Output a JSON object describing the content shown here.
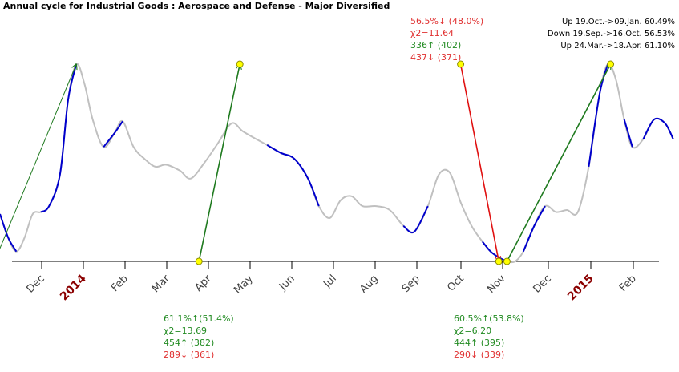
{
  "chart_data": {
    "type": "line",
    "title": "Annual cycle for Industrial Goods : Aerospace and Defense - Major Diversified",
    "x_labels": [
      {
        "label": "Dec",
        "year": false
      },
      {
        "label": "2014",
        "year": true
      },
      {
        "label": "Feb",
        "year": false
      },
      {
        "label": "Mar",
        "year": false
      },
      {
        "label": "Apr",
        "year": false
      },
      {
        "label": "May",
        "year": false
      },
      {
        "label": "Jun",
        "year": false
      },
      {
        "label": "Jul",
        "year": false
      },
      {
        "label": "Aug",
        "year": false
      },
      {
        "label": "Sep",
        "year": false
      },
      {
        "label": "Oct",
        "year": false
      },
      {
        "label": "Nov",
        "year": false
      },
      {
        "label": "Dec",
        "year": false
      },
      {
        "label": "2015",
        "year": true
      },
      {
        "label": "Feb",
        "year": false
      }
    ],
    "series_points": [
      [
        0.0,
        24
      ],
      [
        0.3,
        12
      ],
      [
        0.6,
        5
      ],
      [
        0.9,
        12
      ],
      [
        1.2,
        24
      ],
      [
        1.5,
        25
      ],
      [
        1.8,
        28
      ],
      [
        2.2,
        44
      ],
      [
        2.5,
        82
      ],
      [
        2.8,
        100
      ],
      [
        3.1,
        90
      ],
      [
        3.4,
        72
      ],
      [
        3.8,
        58
      ],
      [
        4.2,
        65
      ],
      [
        4.5,
        71
      ],
      [
        4.9,
        58
      ],
      [
        5.3,
        52
      ],
      [
        5.7,
        48
      ],
      [
        6.1,
        49
      ],
      [
        6.6,
        46
      ],
      [
        7.0,
        42
      ],
      [
        7.5,
        50
      ],
      [
        8.0,
        60
      ],
      [
        8.5,
        70
      ],
      [
        8.9,
        66
      ],
      [
        9.4,
        62
      ],
      [
        9.8,
        59
      ],
      [
        10.3,
        55
      ],
      [
        10.8,
        52
      ],
      [
        11.3,
        42
      ],
      [
        11.7,
        28
      ],
      [
        12.1,
        22
      ],
      [
        12.5,
        31
      ],
      [
        12.9,
        33
      ],
      [
        13.3,
        28
      ],
      [
        13.8,
        28
      ],
      [
        14.3,
        26
      ],
      [
        14.8,
        18
      ],
      [
        15.2,
        15
      ],
      [
        15.7,
        28
      ],
      [
        16.1,
        44
      ],
      [
        16.5,
        45
      ],
      [
        16.9,
        30
      ],
      [
        17.3,
        18
      ],
      [
        17.7,
        10
      ],
      [
        18.0,
        5
      ],
      [
        18.3,
        2
      ],
      [
        18.6,
        0
      ],
      [
        18.9,
        0
      ],
      [
        19.2,
        5
      ],
      [
        19.6,
        18
      ],
      [
        20.0,
        28
      ],
      [
        20.4,
        25
      ],
      [
        20.8,
        26
      ],
      [
        21.2,
        25
      ],
      [
        21.6,
        48
      ],
      [
        22.0,
        85
      ],
      [
        22.3,
        100
      ],
      [
        22.6,
        92
      ],
      [
        22.9,
        72
      ],
      [
        23.2,
        58
      ],
      [
        23.6,
        62
      ],
      [
        24.0,
        72
      ],
      [
        24.4,
        70
      ],
      [
        24.7,
        62
      ]
    ],
    "blue_segments": [
      [
        0.0,
        0.6
      ],
      [
        1.5,
        2.8
      ],
      [
        3.8,
        4.5
      ],
      [
        9.8,
        11.7
      ],
      [
        14.8,
        15.7
      ],
      [
        17.7,
        18.6
      ],
      [
        19.2,
        20.0
      ],
      [
        21.6,
        22.3
      ],
      [
        22.9,
        23.2
      ],
      [
        23.6,
        24.7
      ]
    ],
    "arrows": [
      {
        "direction": "up",
        "from": [
          -0.2,
          0
        ],
        "to": [
          2.8,
          100
        ],
        "weight": "thin"
      },
      {
        "direction": "up",
        "from": [
          7.3,
          0
        ],
        "to": [
          8.8,
          100
        ],
        "weight": "normal"
      },
      {
        "direction": "down",
        "from": [
          16.9,
          100
        ],
        "to": [
          18.3,
          0
        ],
        "weight": "normal"
      },
      {
        "direction": "up",
        "from": [
          18.6,
          0
        ],
        "to": [
          22.4,
          100
        ],
        "weight": "normal"
      }
    ],
    "y_range": [
      0,
      100
    ],
    "summary": [
      "Up 19.Oct.->09.Jan. 60.49%",
      "Down 19.Sep.->16.Oct. 56.53%",
      "Up 24.Mar.->18.Apr. 61.10%"
    ],
    "stats": [
      {
        "lines": [
          {
            "text": "56.5%↓ (48.0%)",
            "color": "red"
          },
          {
            "text": "χ2=11.64",
            "color": "red"
          },
          {
            "text": "336↑ (402)",
            "color": "green"
          },
          {
            "text": "437↓ (371)",
            "color": "red"
          }
        ]
      },
      {
        "lines": [
          {
            "text": "61.1%↑(51.4%)",
            "color": "green"
          },
          {
            "text": "χ2=13.69",
            "color": "green"
          },
          {
            "text": "454↑ (382)",
            "color": "green"
          },
          {
            "text": "289↓ (361)",
            "color": "red"
          }
        ]
      },
      {
        "lines": [
          {
            "text": "60.5%↑(53.8%)",
            "color": "green"
          },
          {
            "text": "χ2=6.20",
            "color": "green"
          },
          {
            "text": "444↑ (395)",
            "color": "green"
          },
          {
            "text": "290↓ (339)",
            "color": "red"
          }
        ]
      }
    ],
    "colors": {
      "line": "#c0c0c0",
      "highlight": "#0000cc",
      "up": "#1f7a1f",
      "down": "#e01010",
      "marker_fill": "#ffff00",
      "year_label": "#8b0000",
      "month_label": "#404040"
    }
  }
}
